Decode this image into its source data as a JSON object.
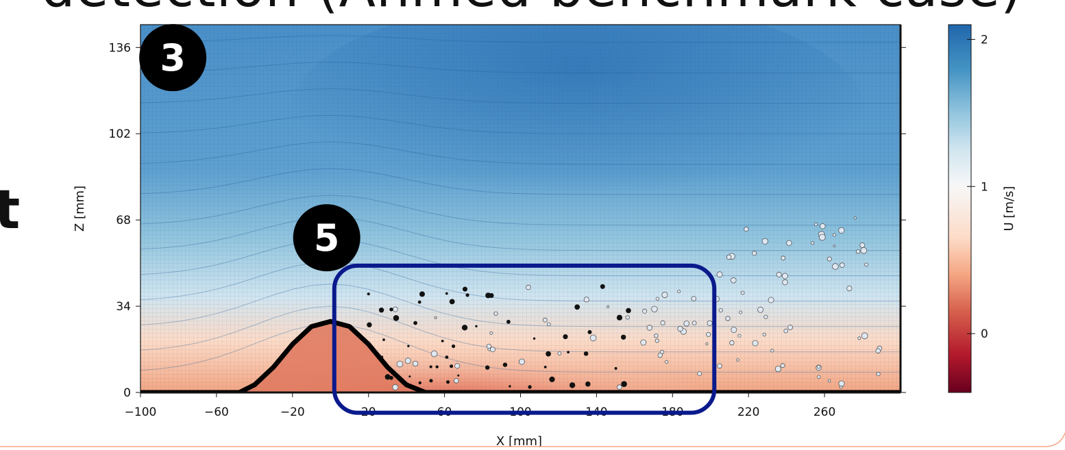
{
  "header": {
    "title_fragment": "detection (Ahmed benchmark case)",
    "side_fragment": "t"
  },
  "badges": [
    "3",
    "5"
  ],
  "colors": {
    "high": "#2166ac",
    "mid": "#f7f7f7",
    "low": "#b2182b",
    "highlight_box": "#0a1a8c",
    "hill": "#000000",
    "footer_line": "#f4a582"
  },
  "chart_data": {
    "type": "heatmap",
    "title": "",
    "xlabel": "X [mm]",
    "ylabel": "Z [mm]",
    "xlim": [
      -100,
      300
    ],
    "ylim": [
      0,
      145
    ],
    "xticks": [
      -100,
      -60,
      -20,
      20,
      60,
      100,
      140,
      180,
      220,
      260
    ],
    "yticks": [
      0,
      34,
      68,
      102,
      136
    ],
    "colorbar": {
      "label": "U [m/s]",
      "range": [
        -0.4,
        2.1
      ],
      "ticks": [
        0,
        1,
        2
      ]
    },
    "hill_profile": {
      "x": [
        -100,
        -48,
        -40,
        -30,
        -20,
        -10,
        0,
        10,
        20,
        30,
        40,
        50,
        300
      ],
      "z": [
        0,
        0,
        3,
        10,
        19,
        26,
        28,
        26,
        19,
        10,
        3,
        0,
        0
      ]
    },
    "highlight_region": {
      "x": [
        2,
        202
      ],
      "z": [
        -8,
        50
      ]
    },
    "badge_positions": [
      {
        "label": "3",
        "x": -83,
        "z": 132
      },
      {
        "label": "5",
        "x": -2,
        "z": 61
      }
    ]
  }
}
